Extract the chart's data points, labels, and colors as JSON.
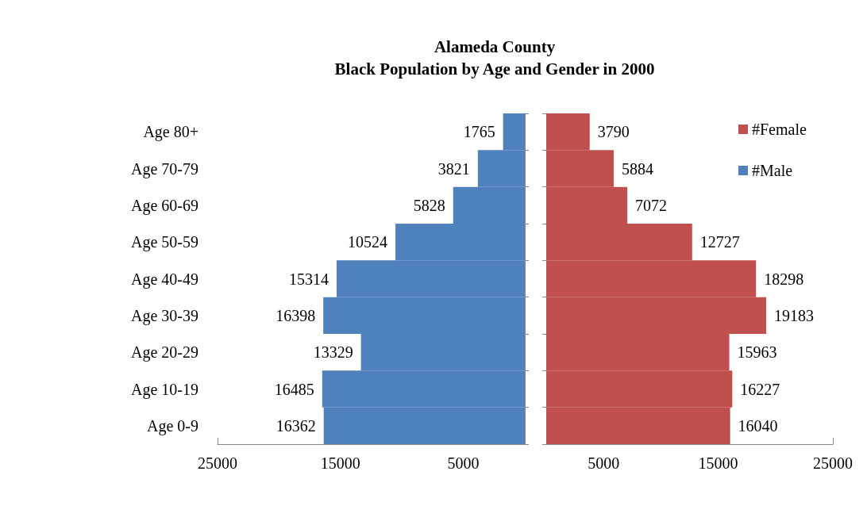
{
  "chart_data": [
    {
      "type": "bar",
      "orientation": "horizontal",
      "title": "Alameda County\nBlack Population by Age and Gender in 2000",
      "categories": [
        "Age 80+",
        "Age 70-79",
        "Age 60-69",
        "Age 50-59",
        "Age 40-49",
        "Age 30-39",
        "Age 20-29",
        "Age 10-19",
        "Age 0-9"
      ],
      "series": [
        {
          "name": "#Male",
          "color": "#4f81bd",
          "values": [
            1765,
            3821,
            5828,
            10524,
            15314,
            16398,
            13329,
            16485,
            16362
          ]
        }
      ],
      "xlim": [
        25000,
        0
      ],
      "xticks": [
        25000,
        15000,
        5000
      ],
      "data_labels": true,
      "grid": false,
      "legend": "top right"
    },
    {
      "type": "bar",
      "orientation": "horizontal",
      "categories": [
        null,
        null,
        null,
        null,
        null,
        null,
        null,
        null,
        null
      ],
      "series": [
        {
          "name": "#Female",
          "color": "#c0504d",
          "values": [
            3790,
            5884,
            7072,
            12727,
            18298,
            19183,
            15963,
            16227,
            16040
          ]
        }
      ],
      "xlim": [
        0,
        25000
      ],
      "xticks": [
        5000,
        15000,
        25000
      ],
      "data_labels": true,
      "grid": false,
      "legend": "top right"
    }
  ]
}
